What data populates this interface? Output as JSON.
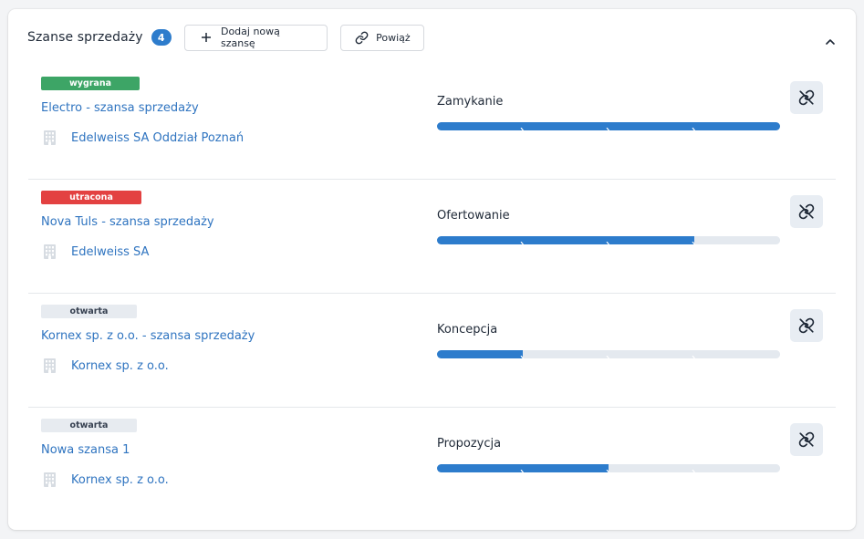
{
  "header": {
    "title": "Szanse sprzedaży",
    "count": "4",
    "add_button_label": "Dodaj nową szansę",
    "link_button_label": "Powiąż"
  },
  "colors": {
    "accent": "#2d7ccc",
    "link": "#2f74c0",
    "won": "#3da566",
    "lost": "#e34141",
    "open": "#e7ebf0",
    "track": "#e4e9ef"
  },
  "opportunities": [
    {
      "status": "wygrana",
      "status_kind": "won",
      "name": "Electro - szansa sprzedaży",
      "company": "Edelweiss SA Oddział Poznań",
      "stage": "Zamykanie",
      "stage_progress": 4,
      "stage_total": 4
    },
    {
      "status": "utracona",
      "status_kind": "lost",
      "name": "Nova Tuls - szansa sprzedaży",
      "company": "Edelweiss SA",
      "stage": "Ofertowanie",
      "stage_progress": 3,
      "stage_total": 4
    },
    {
      "status": "otwarta",
      "status_kind": "open",
      "name": "Kornex sp. z o.o. - szansa sprzedaży",
      "company": "Kornex sp. z o.o.",
      "stage": "Koncepcja",
      "stage_progress": 1,
      "stage_total": 4
    },
    {
      "status": "otwarta",
      "status_kind": "open",
      "name": "Nowa szansa 1",
      "company": "Kornex sp. z o.o.",
      "stage": "Propozycja",
      "stage_progress": 2,
      "stage_total": 4
    }
  ]
}
